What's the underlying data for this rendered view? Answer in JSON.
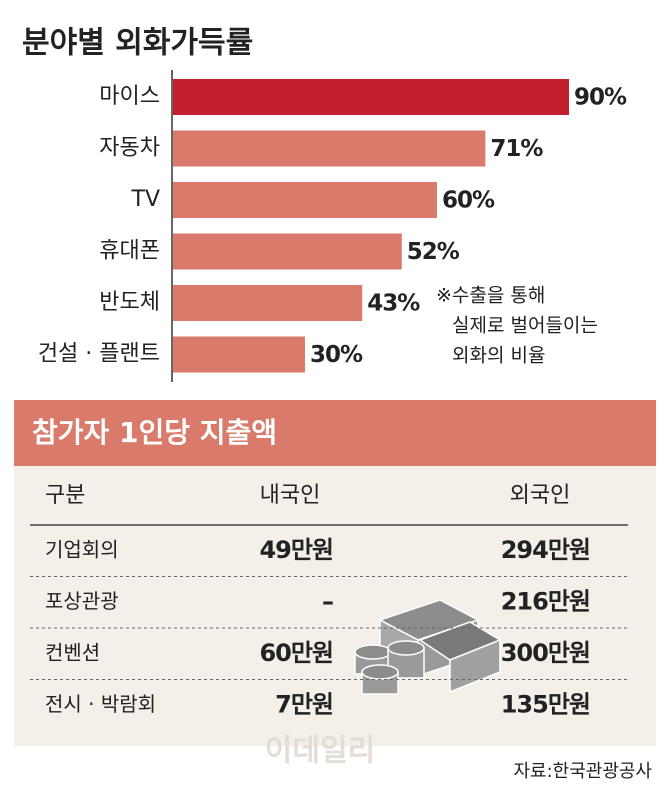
{
  "chart_data": {
    "type": "bar",
    "orientation": "horizontal",
    "title": "분야별 외화가득률",
    "categories": [
      "마이스",
      "자동차",
      "TV",
      "휴대폰",
      "반도체",
      "건설 · 플랜트"
    ],
    "values": [
      90,
      71,
      60,
      52,
      43,
      30
    ],
    "value_labels": [
      "90%",
      "71%",
      "60%",
      "52%",
      "43%",
      "30%"
    ],
    "colors": [
      "#c41f2f",
      "#d97a6a",
      "#d97a6a",
      "#d97a6a",
      "#d97a6a",
      "#d97a6a"
    ],
    "annotation": [
      "※수출을 통해",
      "실제로 벌어들이는",
      "외화의 비율"
    ]
  },
  "table": {
    "title": "참가자 1인당 지출액",
    "header": [
      "구분",
      "내국인",
      "외국인"
    ],
    "rows": [
      [
        "기업회의",
        "49만원",
        "294만원"
      ],
      [
        "포상관광",
        "–",
        "216만원"
      ],
      [
        "컨벤션",
        "60만원",
        "300만원"
      ],
      [
        "전시 · 박람회",
        "7만원",
        "135만원"
      ]
    ]
  },
  "watermark": "이데일리",
  "source": "자료:한국관광공사"
}
